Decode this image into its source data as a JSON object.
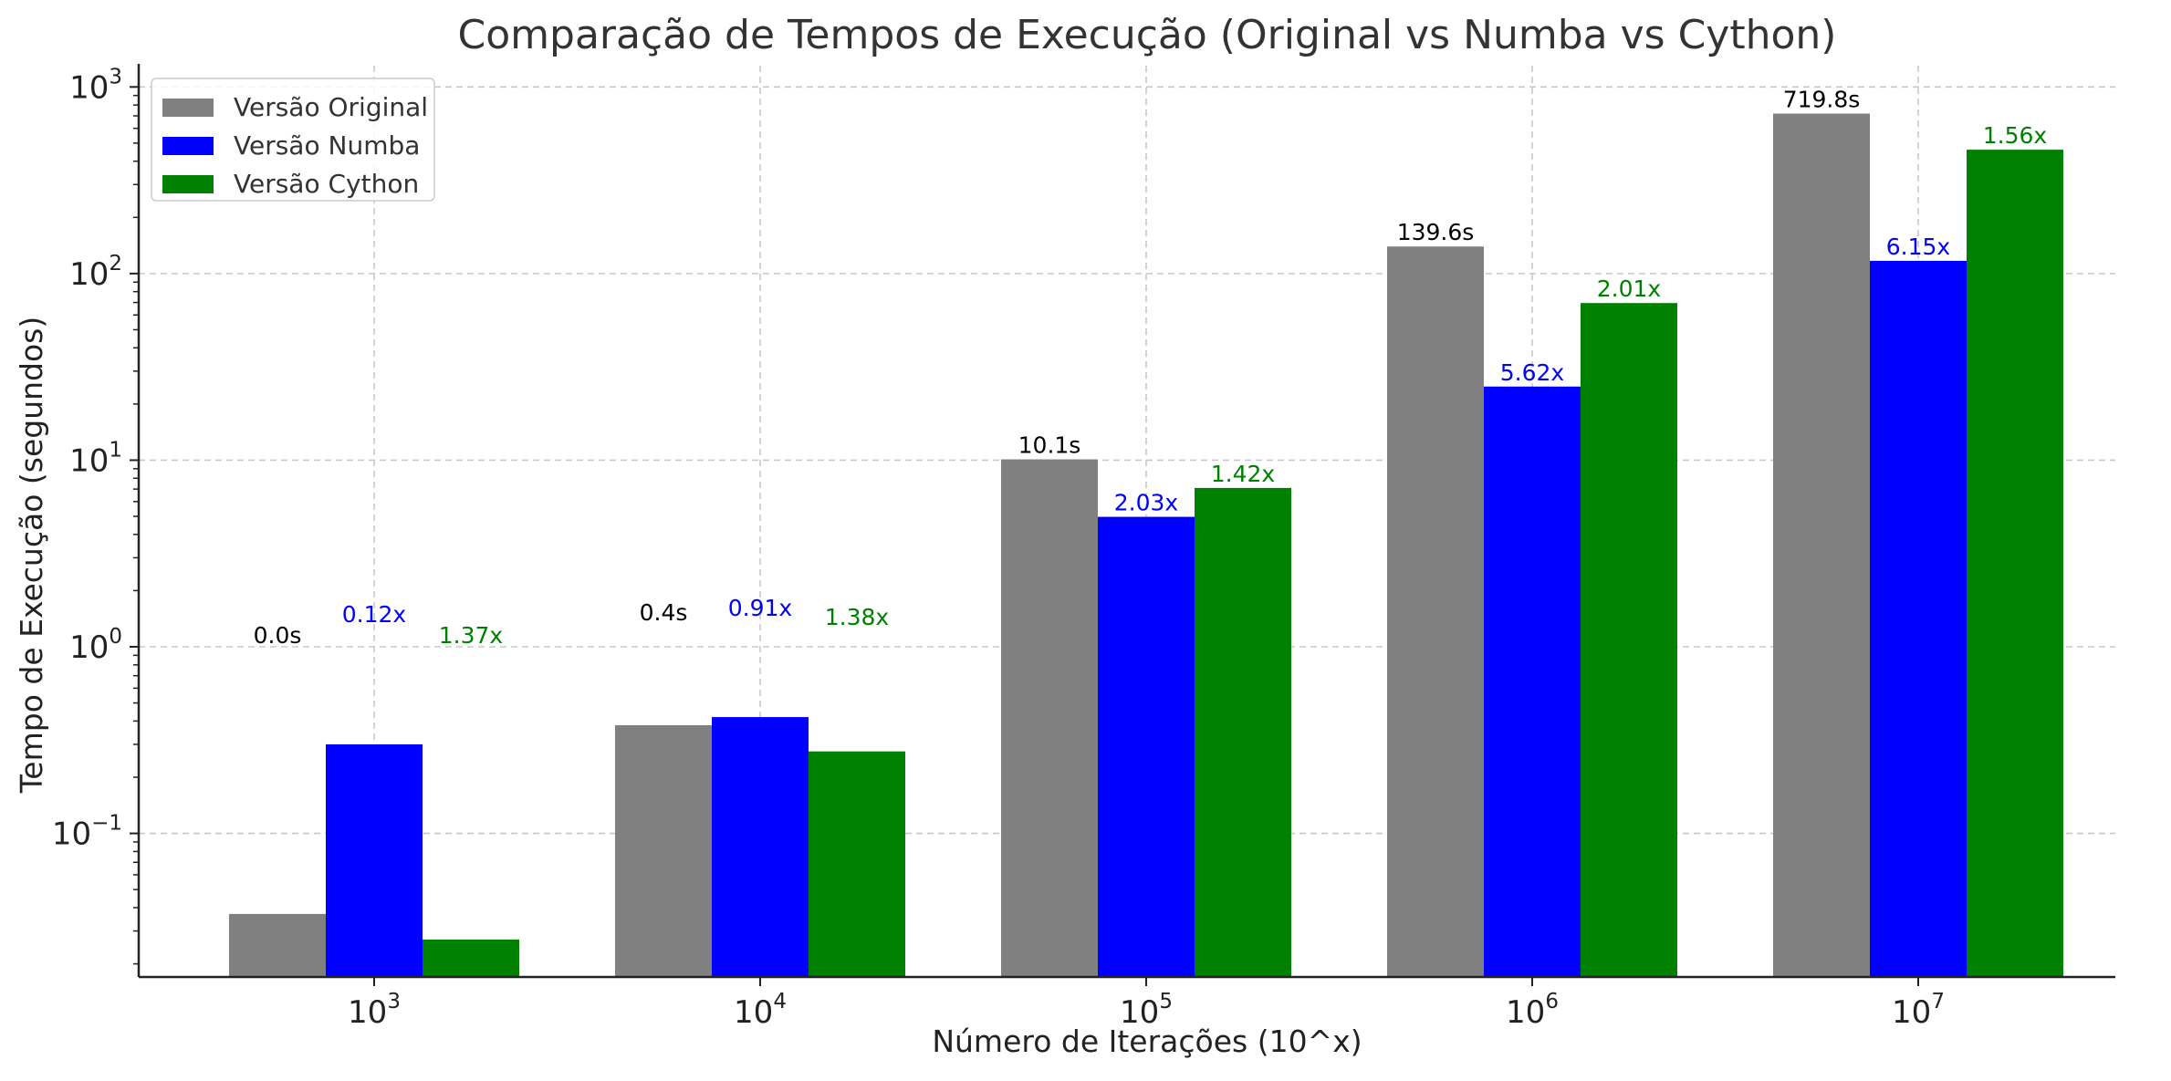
{
  "chart_data": {
    "type": "bar",
    "title": "Comparação de Tempos de Execução (Original vs Numba vs Cython)",
    "xlabel": "Número de Iterações (10^x)",
    "ylabel": "Tempo de Execução (segundos)",
    "y_scale": "log",
    "ylim": [
      0.017,
      1300
    ],
    "grid": true,
    "legend_position": "top-left",
    "categories": [
      "10^3",
      "10^4",
      "10^5",
      "10^6",
      "10^7"
    ],
    "category_exponents": [
      3,
      4,
      5,
      6,
      7
    ],
    "y_tick_exponents": [
      -1,
      0,
      1,
      2,
      3
    ],
    "series": [
      {
        "name": "Versão Original",
        "color": "#808080",
        "values": [
          0.037,
          0.38,
          10.1,
          139.6,
          719.8
        ],
        "labels": [
          "0.0s",
          "0.4s",
          "10.1s",
          "139.6s",
          "719.8s"
        ],
        "label_color": "#000000"
      },
      {
        "name": "Versão Numba",
        "color": "#0000ff",
        "values": [
          0.3,
          0.42,
          4.97,
          24.8,
          117.0
        ],
        "labels": [
          "0.12x",
          "0.91x",
          "2.03x",
          "5.62x",
          "6.15x"
        ],
        "label_color": "#0000ff"
      },
      {
        "name": "Versão Cython",
        "color": "#008000",
        "values": [
          0.027,
          0.275,
          7.1,
          69.5,
          461.0
        ],
        "labels": [
          "1.37x",
          "1.38x",
          "1.42x",
          "2.01x",
          "1.56x"
        ],
        "label_color": "#008000"
      }
    ]
  }
}
